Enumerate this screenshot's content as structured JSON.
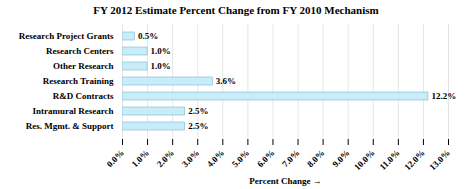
{
  "chart_data": {
    "type": "bar",
    "orientation": "horizontal",
    "title": "FY 2012 Estimate Percent Change from FY 2010 Mechanism",
    "categories": [
      "Res. Mgmt. & Support",
      "Intramural Research",
      "R&D Contracts",
      "Research Training",
      "Other Research",
      "Research Centers",
      "Research Project Grants"
    ],
    "values": [
      2.5,
      2.5,
      12.2,
      3.6,
      1.0,
      1.0,
      0.5
    ],
    "value_labels": [
      "2.5%",
      "2.5%",
      "12.2%",
      "3.6%",
      "1.0%",
      "1.0%",
      "0.5%"
    ],
    "data_labels": true,
    "color": "#c8ecf8",
    "xlabel": "Percent Change",
    "xlim": [
      0,
      13.0
    ],
    "xticks": [
      {
        "value": 0.0,
        "label": "0.0%"
      },
      {
        "value": 1.0,
        "label": "1.0%"
      },
      {
        "value": 2.0,
        "label": "2.0%"
      },
      {
        "value": 3.0,
        "label": "3.0%"
      },
      {
        "value": 4.0,
        "label": "4.0%"
      },
      {
        "value": 5.0,
        "label": "5.0%"
      },
      {
        "value": 6.0,
        "label": "6.0%"
      },
      {
        "value": 7.0,
        "label": "7.0%"
      },
      {
        "value": 8.0,
        "label": "8.0%"
      },
      {
        "value": 9.0,
        "label": "9.0%"
      },
      {
        "value": 10.0,
        "label": "10.0%"
      },
      {
        "value": 11.0,
        "label": "11.0%"
      },
      {
        "value": 12.0,
        "label": "12.0%"
      },
      {
        "value": 13.0,
        "label": "13.0%"
      }
    ],
    "grid": true
  }
}
